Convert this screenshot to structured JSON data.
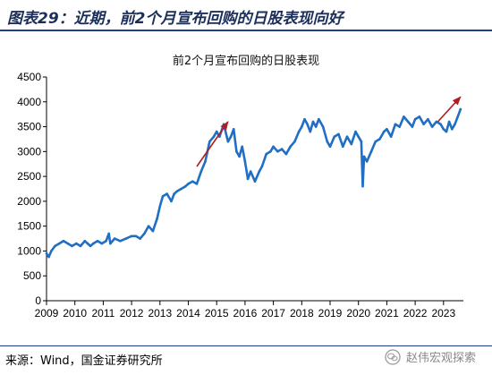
{
  "figure_title": "图表29：近期，前2个月宣布回购的日股表现向好",
  "source_note": "来源：Wind，国金证券研究所",
  "watermark_text": "赵伟宏观探索",
  "chart_data": {
    "type": "line",
    "title": "前2个月宣布回购的日股表现",
    "xlabel": "",
    "ylabel": "",
    "ylim": [
      0,
      4500
    ],
    "yticks": [
      0,
      500,
      1000,
      1500,
      2000,
      2500,
      3000,
      3500,
      4000,
      4500
    ],
    "xlim": [
      2009.0,
      2023.7
    ],
    "xticks": [
      "2009",
      "2010",
      "2011",
      "2012",
      "2013",
      "2014",
      "2015",
      "2016",
      "2017",
      "2018",
      "2019",
      "2020",
      "2021",
      "2022",
      "2023"
    ],
    "grid": false,
    "line_color": "#1f6fc5",
    "arrow_color": "#b01e22",
    "series": [
      {
        "x": [
          2009.0,
          2009.08,
          2009.17,
          2009.3,
          2009.45,
          2009.6,
          2009.75,
          2009.9,
          2010.05,
          2010.2,
          2010.35,
          2010.45,
          2010.55,
          2010.65,
          2010.8,
          2010.95,
          2011.1,
          2011.2,
          2011.25,
          2011.4,
          2011.6,
          2011.8,
          2012.0,
          2012.15,
          2012.3,
          2012.45,
          2012.6,
          2012.75,
          2012.9,
          2013.0,
          2013.1,
          2013.25,
          2013.4,
          2013.5,
          2013.6,
          2013.75,
          2013.9,
          2014.0,
          2014.15,
          2014.3,
          2014.45,
          2014.6,
          2014.75,
          2014.9,
          2015.0,
          2015.1,
          2015.25,
          2015.4,
          2015.5,
          2015.6,
          2015.7,
          2015.8,
          2015.9,
          2016.0,
          2016.1,
          2016.2,
          2016.35,
          2016.5,
          2016.6,
          2016.75,
          2016.9,
          2017.0,
          2017.15,
          2017.3,
          2017.45,
          2017.6,
          2017.75,
          2017.9,
          2018.0,
          2018.1,
          2018.2,
          2018.3,
          2018.4,
          2018.5,
          2018.6,
          2018.75,
          2018.9,
          2019.0,
          2019.15,
          2019.3,
          2019.45,
          2019.6,
          2019.75,
          2019.9,
          2020.0,
          2020.1,
          2020.15,
          2020.2,
          2020.3,
          2020.45,
          2020.6,
          2020.75,
          2020.9,
          2021.0,
          2021.15,
          2021.3,
          2021.45,
          2021.6,
          2021.75,
          2021.9,
          2022.0,
          2022.15,
          2022.3,
          2022.45,
          2022.6,
          2022.75,
          2022.9,
          2023.0,
          2023.1,
          2023.2,
          2023.3,
          2023.4,
          2023.5,
          2023.6
        ],
        "values": [
          950,
          880,
          1000,
          1100,
          1150,
          1200,
          1150,
          1100,
          1150,
          1100,
          1200,
          1150,
          1100,
          1150,
          1200,
          1150,
          1200,
          1350,
          1150,
          1250,
          1200,
          1250,
          1300,
          1300,
          1250,
          1350,
          1500,
          1400,
          1650,
          1900,
          2100,
          2150,
          2000,
          2150,
          2200,
          2250,
          2300,
          2350,
          2400,
          2350,
          2600,
          2800,
          3200,
          3300,
          3400,
          3300,
          3550,
          3200,
          3300,
          3450,
          3000,
          2900,
          3100,
          2800,
          2450,
          2600,
          2400,
          2600,
          2700,
          2950,
          3000,
          3100,
          3000,
          3050,
          2950,
          3100,
          3200,
          3400,
          3500,
          3650,
          3550,
          3400,
          3600,
          3500,
          3650,
          3500,
          3200,
          3100,
          3300,
          3350,
          3100,
          3300,
          3150,
          3400,
          3300,
          3200,
          2300,
          2900,
          2800,
          3000,
          3200,
          3250,
          3400,
          3450,
          3300,
          3550,
          3500,
          3700,
          3600,
          3500,
          3650,
          3700,
          3550,
          3650,
          3500,
          3600,
          3550,
          3450,
          3400,
          3600,
          3450,
          3550,
          3700,
          3850
        ]
      }
    ],
    "annotations": [
      {
        "type": "arrow",
        "from": [
          2014.3,
          2700
        ],
        "to": [
          2015.4,
          3600
        ]
      },
      {
        "type": "arrow",
        "from": [
          2022.8,
          3600
        ],
        "to": [
          2023.6,
          4100
        ]
      }
    ]
  }
}
